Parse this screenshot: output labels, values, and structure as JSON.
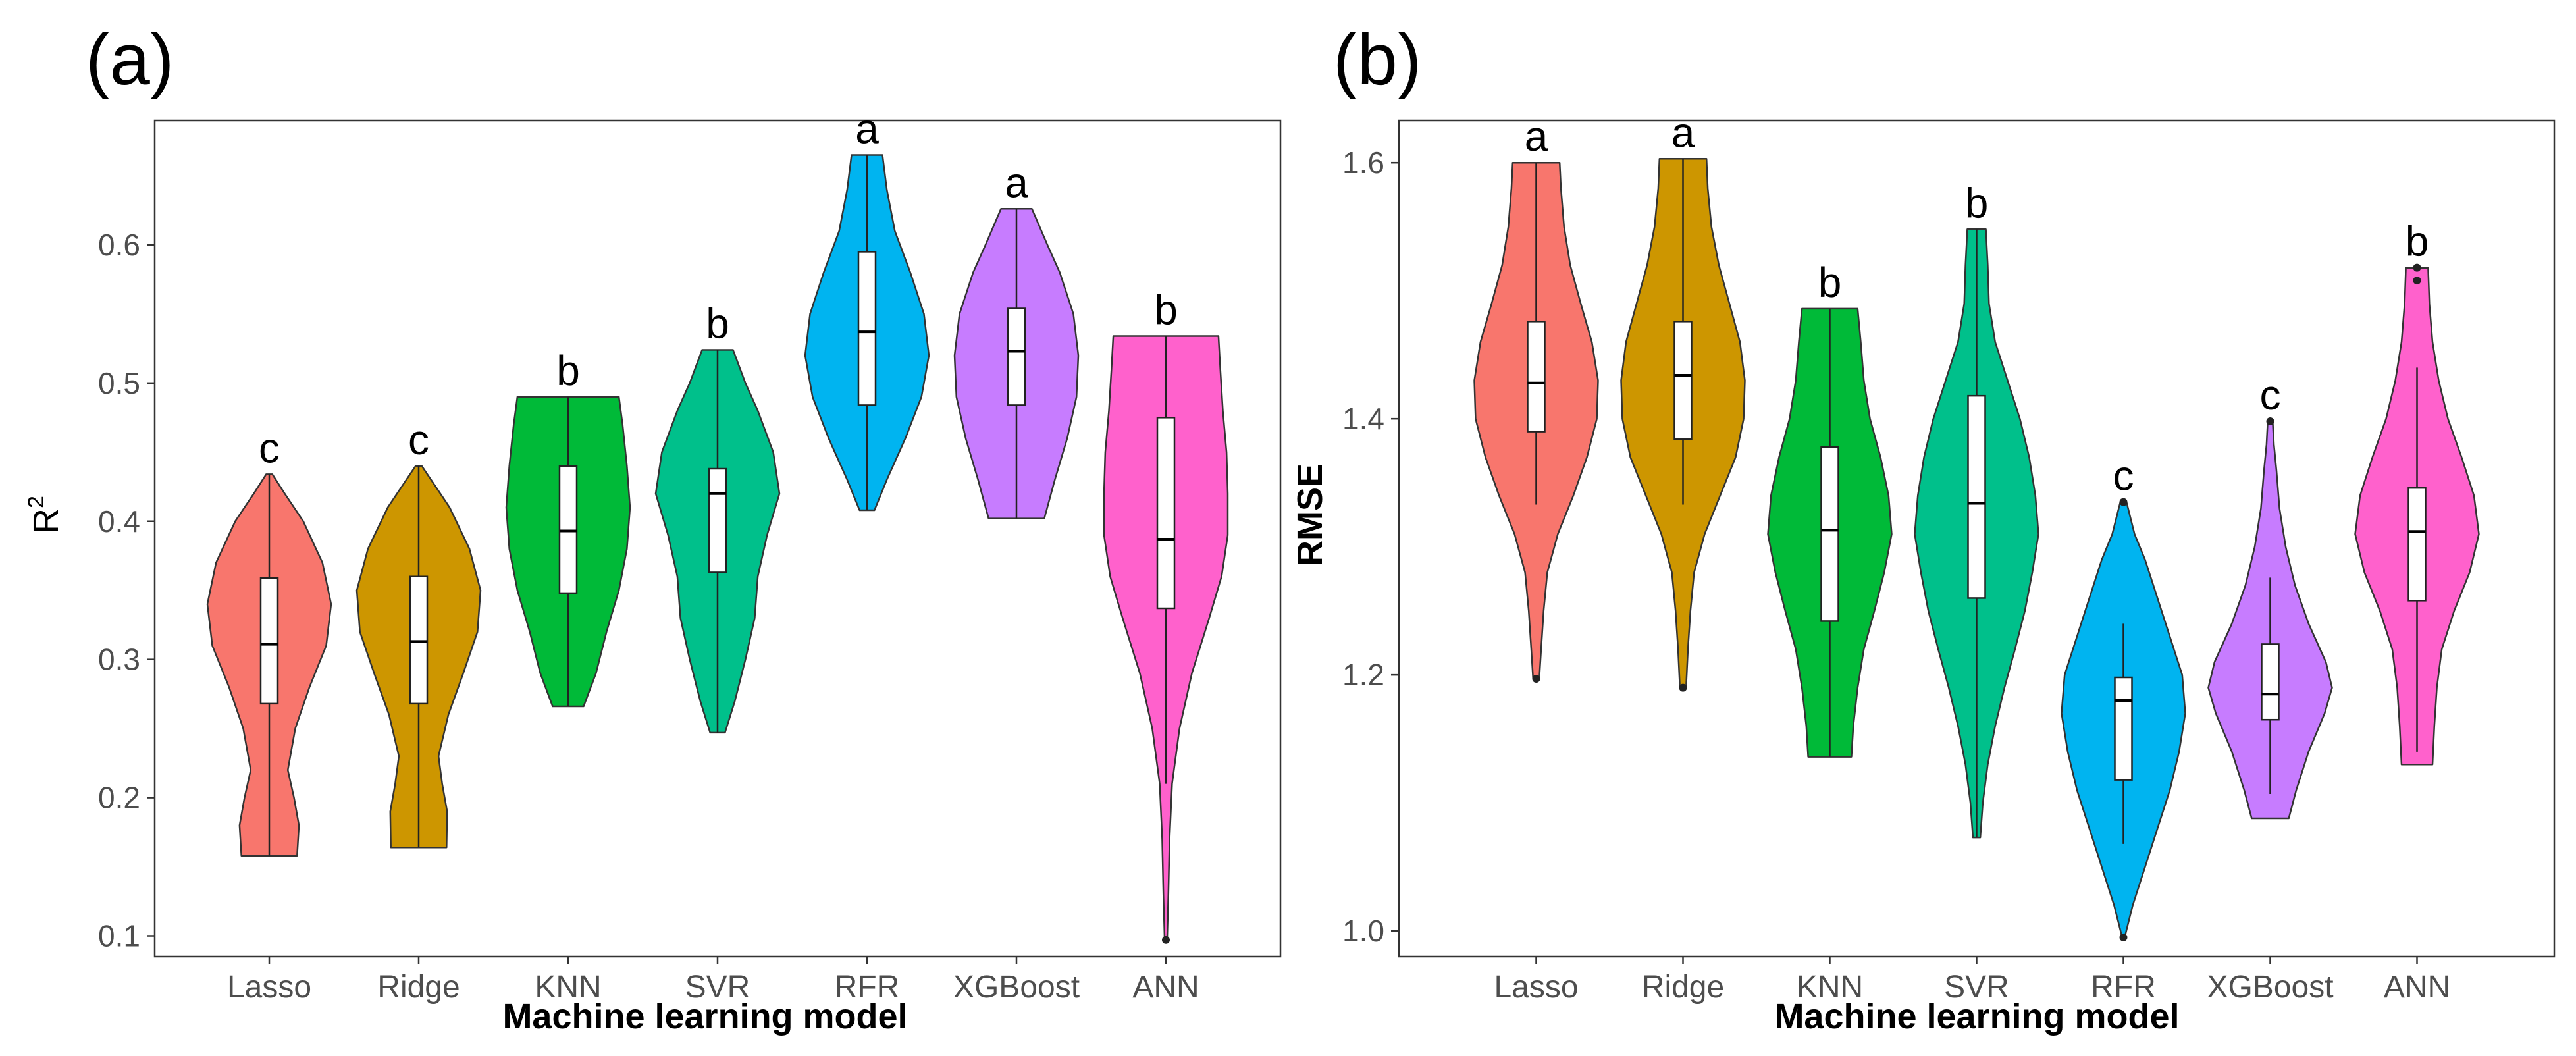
{
  "chart_data": [
    {
      "type": "violin",
      "panel_label": "(a)",
      "title": "",
      "xlabel": "Machine learning model",
      "ylabel": "R",
      "ylabel_sup": "2",
      "ylim": [
        0.085,
        0.69
      ],
      "yticks": [
        0.1,
        0.2,
        0.3,
        0.4,
        0.5,
        0.6
      ],
      "ytick_labels": [
        "0.1",
        "0.2",
        "0.3",
        "0.4",
        "0.5",
        "0.6"
      ],
      "categories": [
        "Lasso",
        "Ridge",
        "KNN",
        "SVR",
        "RFR",
        "XGBoost",
        "ANN"
      ],
      "series": [
        {
          "name": "Lasso",
          "color": "#F8766D",
          "min": 0.158,
          "q1": 0.268,
          "median": 0.311,
          "q3": 0.359,
          "max": 0.434,
          "letter": "c",
          "outliers": [],
          "profile": [
            [
              0.158,
              0.45
            ],
            [
              0.18,
              0.48
            ],
            [
              0.2,
              0.4
            ],
            [
              0.22,
              0.3
            ],
            [
              0.25,
              0.42
            ],
            [
              0.28,
              0.65
            ],
            [
              0.31,
              0.92
            ],
            [
              0.34,
              1.0
            ],
            [
              0.37,
              0.86
            ],
            [
              0.4,
              0.55
            ],
            [
              0.42,
              0.25
            ],
            [
              0.434,
              0.05
            ]
          ]
        },
        {
          "name": "Ridge",
          "color": "#CD9600",
          "min": 0.164,
          "q1": 0.268,
          "median": 0.313,
          "q3": 0.36,
          "max": 0.44,
          "letter": "c",
          "outliers": [],
          "profile": [
            [
              0.164,
              0.45
            ],
            [
              0.19,
              0.46
            ],
            [
              0.21,
              0.38
            ],
            [
              0.23,
              0.32
            ],
            [
              0.26,
              0.48
            ],
            [
              0.29,
              0.72
            ],
            [
              0.32,
              0.95
            ],
            [
              0.35,
              1.0
            ],
            [
              0.38,
              0.82
            ],
            [
              0.41,
              0.5
            ],
            [
              0.43,
              0.2
            ],
            [
              0.44,
              0.05
            ]
          ]
        },
        {
          "name": "KNN",
          "color": "#00BA38",
          "min": 0.266,
          "q1": 0.348,
          "median": 0.393,
          "q3": 0.44,
          "max": 0.49,
          "letter": "b",
          "outliers": [],
          "profile": [
            [
              0.266,
              0.25
            ],
            [
              0.29,
              0.45
            ],
            [
              0.32,
              0.62
            ],
            [
              0.35,
              0.82
            ],
            [
              0.38,
              0.95
            ],
            [
              0.41,
              1.0
            ],
            [
              0.44,
              0.95
            ],
            [
              0.47,
              0.88
            ],
            [
              0.49,
              0.82
            ]
          ]
        },
        {
          "name": "SVR",
          "color": "#00C08B",
          "min": 0.247,
          "q1": 0.363,
          "median": 0.42,
          "q3": 0.438,
          "max": 0.524,
          "letter": "b",
          "outliers": [],
          "profile": [
            [
              0.247,
              0.12
            ],
            [
              0.27,
              0.28
            ],
            [
              0.3,
              0.45
            ],
            [
              0.33,
              0.6
            ],
            [
              0.36,
              0.65
            ],
            [
              0.39,
              0.8
            ],
            [
              0.42,
              1.0
            ],
            [
              0.45,
              0.9
            ],
            [
              0.48,
              0.65
            ],
            [
              0.5,
              0.45
            ],
            [
              0.524,
              0.25
            ]
          ]
        },
        {
          "name": "RFR",
          "color": "#00B4F0",
          "min": 0.408,
          "q1": 0.484,
          "median": 0.537,
          "q3": 0.595,
          "max": 0.665,
          "letter": "a",
          "outliers": [],
          "profile": [
            [
              0.408,
              0.12
            ],
            [
              0.43,
              0.32
            ],
            [
              0.46,
              0.62
            ],
            [
              0.49,
              0.88
            ],
            [
              0.52,
              1.0
            ],
            [
              0.55,
              0.92
            ],
            [
              0.58,
              0.7
            ],
            [
              0.61,
              0.45
            ],
            [
              0.64,
              0.32
            ],
            [
              0.665,
              0.25
            ]
          ]
        },
        {
          "name": "XGBoost",
          "color": "#C77CFF",
          "min": 0.402,
          "q1": 0.484,
          "median": 0.523,
          "q3": 0.554,
          "max": 0.626,
          "letter": "a",
          "outliers": [],
          "profile": [
            [
              0.402,
              0.45
            ],
            [
              0.43,
              0.62
            ],
            [
              0.46,
              0.82
            ],
            [
              0.49,
              0.97
            ],
            [
              0.52,
              1.0
            ],
            [
              0.55,
              0.92
            ],
            [
              0.58,
              0.7
            ],
            [
              0.6,
              0.5
            ],
            [
              0.626,
              0.25
            ]
          ]
        },
        {
          "name": "ANN",
          "color": "#FF61CC",
          "min": 0.21,
          "q1": 0.337,
          "median": 0.387,
          "q3": 0.475,
          "max": 0.534,
          "letter": "b",
          "outliers": [
            0.097
          ],
          "profile": [
            [
              0.097,
              0.02
            ],
            [
              0.13,
              0.04
            ],
            [
              0.17,
              0.06
            ],
            [
              0.21,
              0.1
            ],
            [
              0.25,
              0.22
            ],
            [
              0.29,
              0.42
            ],
            [
              0.33,
              0.7
            ],
            [
              0.36,
              0.9
            ],
            [
              0.39,
              1.0
            ],
            [
              0.42,
              1.0
            ],
            [
              0.45,
              0.98
            ],
            [
              0.48,
              0.92
            ],
            [
              0.51,
              0.88
            ],
            [
              0.534,
              0.85
            ]
          ]
        }
      ]
    },
    {
      "type": "violin",
      "panel_label": "(b)",
      "title": "",
      "xlabel": "Machine learning model",
      "ylabel": "RMSE",
      "ylim": [
        0.98,
        1.633
      ],
      "yticks": [
        1.0,
        1.2,
        1.4,
        1.6
      ],
      "ytick_labels": [
        "1.0",
        "1.2",
        "1.4",
        "1.6"
      ],
      "categories": [
        "Lasso",
        "Ridge",
        "KNN",
        "SVR",
        "RFR",
        "XGBoost",
        "ANN"
      ],
      "series": [
        {
          "name": "Lasso",
          "color": "#F8766D",
          "min": 1.333,
          "q1": 1.39,
          "median": 1.428,
          "q3": 1.476,
          "max": 1.6,
          "letter": "a",
          "outliers": [
            1.197
          ],
          "profile": [
            [
              1.197,
              0.05
            ],
            [
              1.22,
              0.08
            ],
            [
              1.25,
              0.12
            ],
            [
              1.28,
              0.18
            ],
            [
              1.31,
              0.35
            ],
            [
              1.34,
              0.6
            ],
            [
              1.37,
              0.82
            ],
            [
              1.4,
              0.98
            ],
            [
              1.43,
              1.0
            ],
            [
              1.46,
              0.9
            ],
            [
              1.49,
              0.72
            ],
            [
              1.52,
              0.55
            ],
            [
              1.55,
              0.45
            ],
            [
              1.58,
              0.4
            ],
            [
              1.6,
              0.38
            ]
          ]
        },
        {
          "name": "Ridge",
          "color": "#CD9600",
          "min": 1.333,
          "q1": 1.384,
          "median": 1.434,
          "q3": 1.476,
          "max": 1.603,
          "letter": "a",
          "outliers": [
            1.19
          ],
          "profile": [
            [
              1.19,
              0.05
            ],
            [
              1.22,
              0.08
            ],
            [
              1.25,
              0.12
            ],
            [
              1.28,
              0.18
            ],
            [
              1.31,
              0.35
            ],
            [
              1.34,
              0.6
            ],
            [
              1.37,
              0.85
            ],
            [
              1.4,
              0.98
            ],
            [
              1.43,
              1.0
            ],
            [
              1.46,
              0.92
            ],
            [
              1.49,
              0.75
            ],
            [
              1.52,
              0.58
            ],
            [
              1.55,
              0.46
            ],
            [
              1.58,
              0.4
            ],
            [
              1.603,
              0.38
            ]
          ]
        },
        {
          "name": "KNN",
          "color": "#00BA38",
          "min": 1.136,
          "q1": 1.242,
          "median": 1.313,
          "q3": 1.378,
          "max": 1.486,
          "letter": "b",
          "outliers": [],
          "profile": [
            [
              1.136,
              0.35
            ],
            [
              1.16,
              0.38
            ],
            [
              1.19,
              0.45
            ],
            [
              1.22,
              0.55
            ],
            [
              1.25,
              0.72
            ],
            [
              1.28,
              0.88
            ],
            [
              1.31,
              1.0
            ],
            [
              1.34,
              0.95
            ],
            [
              1.37,
              0.82
            ],
            [
              1.4,
              0.65
            ],
            [
              1.43,
              0.55
            ],
            [
              1.46,
              0.5
            ],
            [
              1.486,
              0.45
            ]
          ]
        },
        {
          "name": "SVR",
          "color": "#00C08B",
          "min": 1.073,
          "q1": 1.26,
          "median": 1.334,
          "q3": 1.418,
          "max": 1.548,
          "letter": "b",
          "outliers": [],
          "profile": [
            [
              1.073,
              0.06
            ],
            [
              1.1,
              0.1
            ],
            [
              1.13,
              0.18
            ],
            [
              1.16,
              0.3
            ],
            [
              1.19,
              0.45
            ],
            [
              1.22,
              0.62
            ],
            [
              1.25,
              0.78
            ],
            [
              1.28,
              0.9
            ],
            [
              1.31,
              1.0
            ],
            [
              1.34,
              0.95
            ],
            [
              1.37,
              0.85
            ],
            [
              1.4,
              0.7
            ],
            [
              1.43,
              0.5
            ],
            [
              1.46,
              0.3
            ],
            [
              1.49,
              0.2
            ],
            [
              1.52,
              0.18
            ],
            [
              1.548,
              0.15
            ]
          ]
        },
        {
          "name": "RFR",
          "color": "#00B4F0",
          "min": 1.068,
          "q1": 1.118,
          "median": 1.18,
          "q3": 1.198,
          "max": 1.24,
          "letter": "c",
          "outliers": [
            0.995,
            1.335
          ],
          "profile": [
            [
              0.995,
              0.02
            ],
            [
              1.02,
              0.15
            ],
            [
              1.05,
              0.35
            ],
            [
              1.08,
              0.55
            ],
            [
              1.11,
              0.75
            ],
            [
              1.14,
              0.9
            ],
            [
              1.17,
              1.0
            ],
            [
              1.2,
              0.95
            ],
            [
              1.23,
              0.75
            ],
            [
              1.26,
              0.55
            ],
            [
              1.29,
              0.35
            ],
            [
              1.31,
              0.18
            ],
            [
              1.335,
              0.05
            ]
          ]
        },
        {
          "name": "XGBoost",
          "color": "#C77CFF",
          "min": 1.107,
          "q1": 1.165,
          "median": 1.185,
          "q3": 1.224,
          "max": 1.276,
          "letter": "c",
          "outliers": [
            1.398
          ],
          "profile": [
            [
              1.088,
              0.3
            ],
            [
              1.11,
              0.42
            ],
            [
              1.14,
              0.62
            ],
            [
              1.17,
              0.88
            ],
            [
              1.19,
              1.0
            ],
            [
              1.21,
              0.9
            ],
            [
              1.24,
              0.62
            ],
            [
              1.27,
              0.4
            ],
            [
              1.3,
              0.25
            ],
            [
              1.33,
              0.15
            ],
            [
              1.36,
              0.1
            ],
            [
              1.38,
              0.06
            ],
            [
              1.398,
              0.04
            ]
          ]
        },
        {
          "name": "ANN",
          "color": "#FF61CC",
          "min": 1.14,
          "q1": 1.258,
          "median": 1.312,
          "q3": 1.346,
          "max": 1.44,
          "letter": "b",
          "outliers": [
            1.508,
            1.518
          ],
          "profile": [
            [
              1.13,
              0.25
            ],
            [
              1.16,
              0.28
            ],
            [
              1.19,
              0.32
            ],
            [
              1.22,
              0.4
            ],
            [
              1.25,
              0.6
            ],
            [
              1.28,
              0.85
            ],
            [
              1.31,
              1.0
            ],
            [
              1.34,
              0.92
            ],
            [
              1.37,
              0.72
            ],
            [
              1.4,
              0.5
            ],
            [
              1.43,
              0.35
            ],
            [
              1.46,
              0.25
            ],
            [
              1.49,
              0.2
            ],
            [
              1.518,
              0.18
            ]
          ]
        }
      ]
    }
  ]
}
